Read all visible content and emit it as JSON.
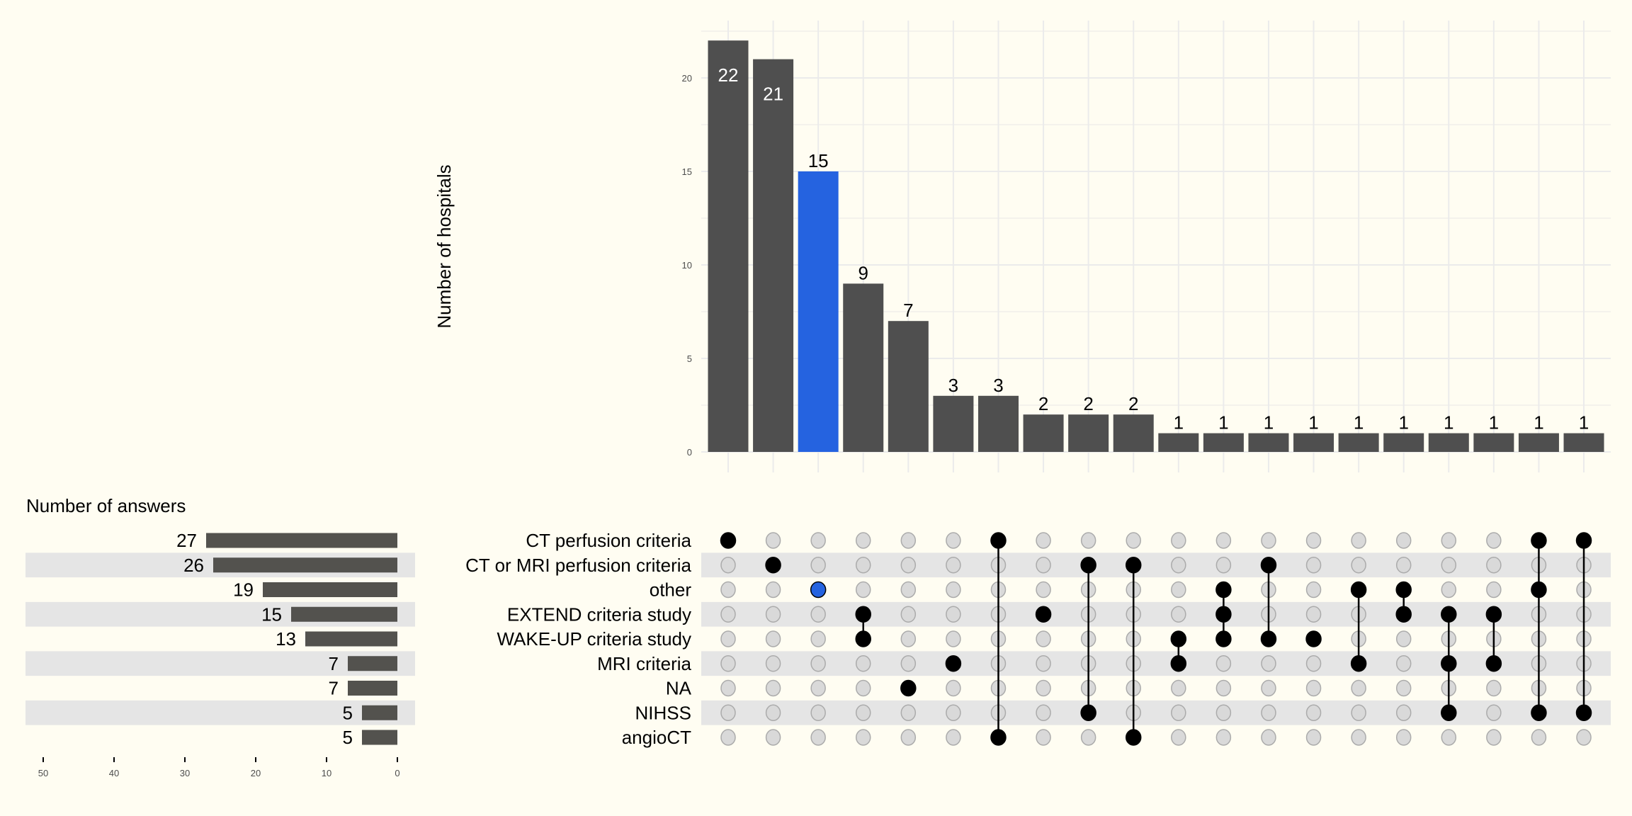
{
  "chart_data": {
    "type": "bar",
    "subtype": "upset",
    "y_axis_title": "Number of hospitals",
    "ylim": [
      0,
      22.5
    ],
    "yticks": [
      0,
      5,
      10,
      15,
      20
    ],
    "grid": true,
    "set_size_title": "Number of answers",
    "set_size_xlim": [
      50,
      0
    ],
    "set_size_ticks": [
      50,
      40,
      30,
      20,
      10,
      0
    ],
    "sets": [
      {
        "name": "CT perfusion criteria",
        "size": 27
      },
      {
        "name": "CT or MRI perfusion criteria",
        "size": 26
      },
      {
        "name": "other",
        "size": 19
      },
      {
        "name": "EXTEND criteria study",
        "size": 15
      },
      {
        "name": "WAKE-UP criteria study",
        "size": 13
      },
      {
        "name": "MRI criteria",
        "size": 7
      },
      {
        "name": "NA",
        "size": 7
      },
      {
        "name": "NIHSS",
        "size": 5
      },
      {
        "name": "angioCT",
        "size": 5
      }
    ],
    "intersections": [
      {
        "sets": [
          "CT perfusion criteria"
        ],
        "value": 22
      },
      {
        "sets": [
          "CT or MRI perfusion criteria"
        ],
        "value": 21
      },
      {
        "sets": [
          "other"
        ],
        "value": 15,
        "highlight": true
      },
      {
        "sets": [
          "EXTEND criteria study",
          "WAKE-UP criteria study"
        ],
        "value": 9
      },
      {
        "sets": [
          "NA"
        ],
        "value": 7
      },
      {
        "sets": [
          "MRI criteria"
        ],
        "value": 3
      },
      {
        "sets": [
          "CT perfusion criteria",
          "angioCT"
        ],
        "value": 3
      },
      {
        "sets": [
          "EXTEND criteria study"
        ],
        "value": 2
      },
      {
        "sets": [
          "CT or MRI perfusion criteria",
          "NIHSS"
        ],
        "value": 2
      },
      {
        "sets": [
          "CT or MRI perfusion criteria",
          "angioCT"
        ],
        "value": 2
      },
      {
        "sets": [
          "WAKE-UP criteria study",
          "MRI criteria"
        ],
        "value": 1
      },
      {
        "sets": [
          "other",
          "EXTEND criteria study",
          "WAKE-UP criteria study"
        ],
        "value": 1
      },
      {
        "sets": [
          "CT or MRI perfusion criteria",
          "WAKE-UP criteria study"
        ],
        "value": 1
      },
      {
        "sets": [
          "WAKE-UP criteria study"
        ],
        "value": 1
      },
      {
        "sets": [
          "other",
          "MRI criteria"
        ],
        "value": 1
      },
      {
        "sets": [
          "other",
          "EXTEND criteria study"
        ],
        "value": 1
      },
      {
        "sets": [
          "EXTEND criteria study",
          "MRI criteria",
          "NIHSS"
        ],
        "value": 1
      },
      {
        "sets": [
          "EXTEND criteria study",
          "MRI criteria"
        ],
        "value": 1
      },
      {
        "sets": [
          "CT perfusion criteria",
          "other",
          "NIHSS"
        ],
        "value": 1
      },
      {
        "sets": [
          "CT perfusion criteria",
          "NIHSS"
        ],
        "value": 1
      }
    ],
    "colors": {
      "background": "#FFFDF2",
      "bar": "#4F4F4F",
      "highlight": "#2563E0",
      "set_bar": "#53524E",
      "stripe": "#E5E5E5",
      "dot_active": "#000000",
      "dot_inactive": "#D9D9D9"
    }
  }
}
